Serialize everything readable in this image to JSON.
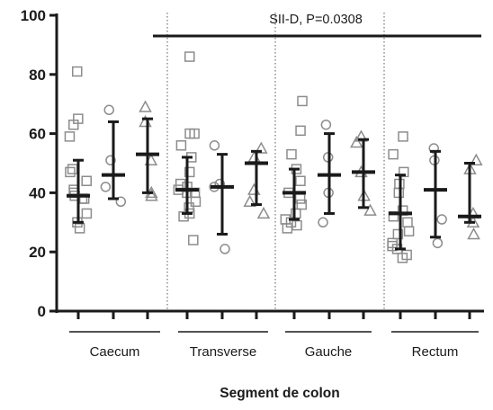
{
  "chart_data": {
    "type": "scatter",
    "xlabel": "Segment de colon",
    "ylabel": "",
    "ylim": [
      0,
      100
    ],
    "yticks": [
      0,
      20,
      40,
      60,
      80,
      100
    ],
    "grid": false,
    "legend": "none",
    "annotation": {
      "text": "SII-D, P=0.0308",
      "line_y": 93
    },
    "colors": {
      "axis": "#1a1a1a",
      "markers": "#8c8c8c",
      "bars": "#1a1a1a"
    },
    "groups": [
      {
        "label": "Caecum",
        "subgroups": [
          {
            "marker": "square",
            "mean": 39,
            "sd_low": 30,
            "sd_high": 51,
            "values": [
              81,
              65,
              63,
              59,
              48,
              47,
              44,
              41,
              40,
              39,
              38,
              38,
              33,
              30,
              28
            ]
          },
          {
            "marker": "circle",
            "mean": 46,
            "sd_low": 38,
            "sd_high": 64,
            "values": [
              68,
              51,
              42,
              37
            ]
          },
          {
            "marker": "triangle",
            "mean": 53,
            "sd_low": 40,
            "sd_high": 65,
            "values": [
              69,
              64,
              51,
              40,
              39
            ]
          }
        ]
      },
      {
        "label": "Transverse",
        "subgroups": [
          {
            "marker": "square",
            "mean": 41,
            "sd_low": 33,
            "sd_high": 52,
            "values": [
              86,
              60,
              60,
              56,
              52,
              47,
              43,
              42,
              41,
              40,
              40,
              37,
              35,
              33,
              32,
              24
            ]
          },
          {
            "marker": "circle",
            "mean": 42,
            "sd_low": 26,
            "sd_high": 53,
            "values": [
              56,
              43,
              42,
              21
            ]
          },
          {
            "marker": "triangle",
            "mean": 50,
            "sd_low": 36,
            "sd_high": 54,
            "values": [
              55,
              52,
              41,
              37,
              33
            ]
          }
        ]
      },
      {
        "label": "Gauche",
        "subgroups": [
          {
            "marker": "square",
            "mean": 40,
            "sd_low": 31,
            "sd_high": 48,
            "values": [
              71,
              61,
              53,
              48,
              44,
              40,
              38,
              36,
              33,
              31,
              30,
              29,
              28
            ]
          },
          {
            "marker": "circle",
            "mean": 46,
            "sd_low": 33,
            "sd_high": 60,
            "values": [
              63,
              52,
              40,
              30
            ]
          },
          {
            "marker": "triangle",
            "mean": 47,
            "sd_low": 35,
            "sd_high": 58,
            "values": [
              59,
              57,
              47,
              39,
              34
            ]
          }
        ]
      },
      {
        "label": "Rectum",
        "subgroups": [
          {
            "marker": "square",
            "mean": 33,
            "sd_low": 21,
            "sd_high": 46,
            "values": [
              59,
              53,
              47,
              43,
              40,
              34,
              32,
              30,
              27,
              26,
              23,
              22,
              21,
              19,
              18
            ]
          },
          {
            "marker": "circle",
            "mean": 41,
            "sd_low": 25,
            "sd_high": 54,
            "values": [
              55,
              51,
              31,
              23
            ]
          },
          {
            "marker": "triangle",
            "mean": 32,
            "sd_low": 30,
            "sd_high": 50,
            "values": [
              51,
              48,
              33,
              30,
              26
            ]
          }
        ]
      }
    ]
  }
}
